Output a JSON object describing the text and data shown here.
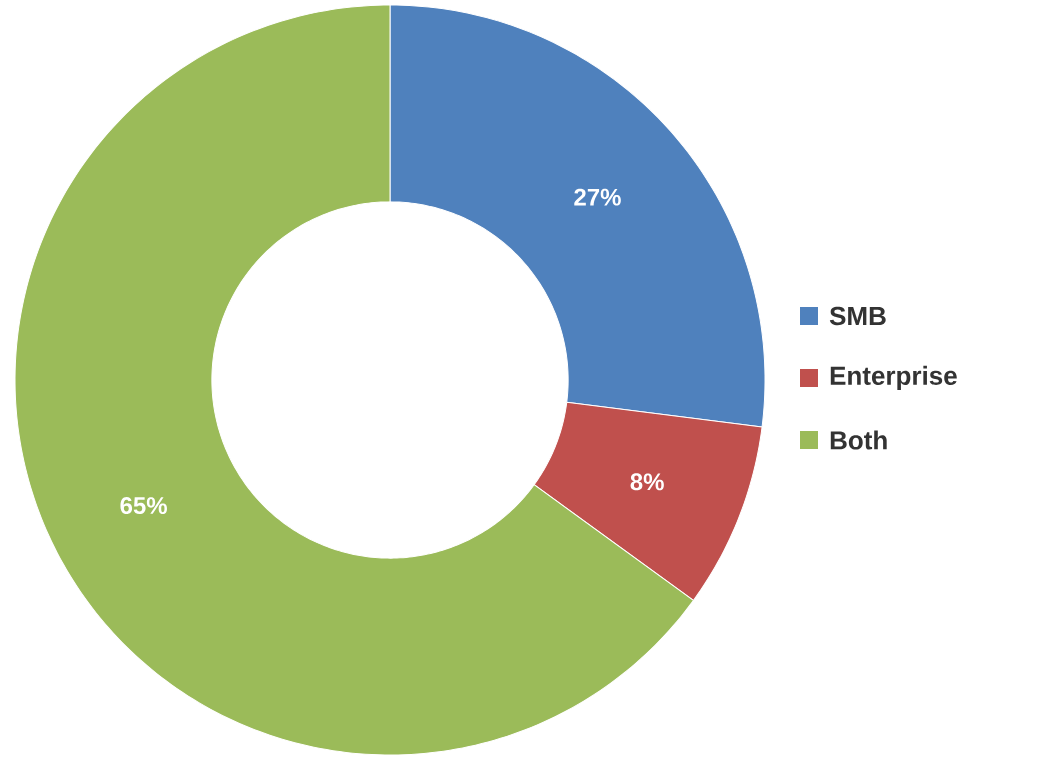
{
  "chart_data": {
    "type": "donut",
    "categories": [
      "SMB",
      "Enterprise",
      "Both"
    ],
    "values": [
      27,
      8,
      65
    ],
    "colors": [
      "#4f81bd",
      "#c0504d",
      "#9bbb59"
    ],
    "value_labels": [
      "27%",
      "8%",
      "65%"
    ],
    "legend": "right"
  }
}
